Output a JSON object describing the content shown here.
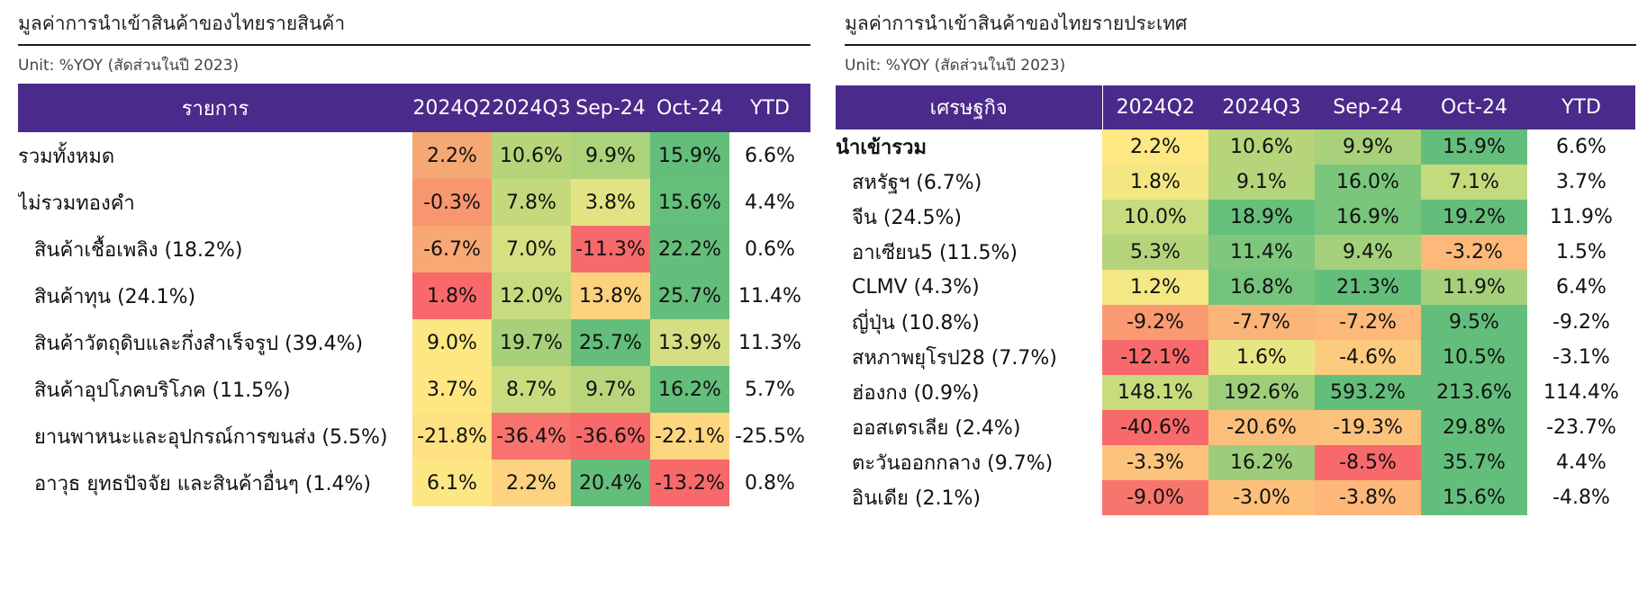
{
  "left": {
    "title": "มูลค่าการนำเข้าสินค้าของไทยรายสินค้า",
    "unit": "Unit: %YOY (สัดส่วนในปี 2023)",
    "headers": [
      "รายการ",
      "2024Q2",
      "2024Q3",
      "Sep-24",
      "Oct-24",
      "YTD"
    ],
    "rows": [
      {
        "label": "รวมทั้งหมด",
        "indent": false,
        "bold": false,
        "values": [
          "2.2%",
          "10.6%",
          "9.9%",
          "15.9%",
          "6.6%"
        ]
      },
      {
        "label": "ไม่รวมทองคำ",
        "indent": false,
        "bold": false,
        "values": [
          "-0.3%",
          "7.8%",
          "3.8%",
          "15.6%",
          "4.4%"
        ]
      },
      {
        "label": "สินค้าเชื้อเพลิง (18.2%)",
        "indent": true,
        "bold": false,
        "values": [
          "-6.7%",
          "7.0%",
          "-11.3%",
          "22.2%",
          "0.6%"
        ]
      },
      {
        "label": "สินค้าทุน (24.1%)",
        "indent": true,
        "bold": false,
        "values": [
          "1.8%",
          "12.0%",
          "13.8%",
          "25.7%",
          "11.4%"
        ]
      },
      {
        "label": "สินค้าวัตถุดิบและกึ่งสำเร็จรูป (39.4%)",
        "indent": true,
        "bold": false,
        "values": [
          "9.0%",
          "19.7%",
          "25.7%",
          "13.9%",
          "11.3%"
        ]
      },
      {
        "label": "สินค้าอุปโภคบริโภค (11.5%)",
        "indent": true,
        "bold": false,
        "values": [
          "3.7%",
          "8.7%",
          "9.7%",
          "16.2%",
          "5.7%"
        ]
      },
      {
        "label": "ยานพาหนะและอุปกรณ์การขนส่ง (5.5%)",
        "indent": true,
        "bold": false,
        "values": [
          "-21.8%",
          "-36.4%",
          "-36.6%",
          "-22.1%",
          "-25.5%"
        ]
      },
      {
        "label": "อาวุธ ยุทธปัจจัย และสินค้าอื่นๆ (1.4%)",
        "indent": true,
        "bold": false,
        "values": [
          "6.1%",
          "2.2%",
          "20.4%",
          "-13.2%",
          "0.8%"
        ]
      }
    ],
    "colors": [
      [
        "#f5a873",
        "#b6d47a",
        "#acd27a",
        "#63be7b"
      ],
      [
        "#f8966f",
        "#c4d97c",
        "#e2e383",
        "#64bf7b"
      ],
      [
        "#f8a874",
        "#d6e081",
        "#f8696b",
        "#63be7b"
      ],
      [
        "#f8696b",
        "#c7dc7e",
        "#fcd27f",
        "#63be7b"
      ],
      [
        "#fce783",
        "#a7d07a",
        "#63be7b",
        "#d3df82"
      ],
      [
        "#fee783",
        "#c8dc7e",
        "#b8d57c",
        "#63be7b"
      ],
      [
        "#fee182",
        "#f8736d",
        "#f8696b",
        "#fdd680"
      ],
      [
        "#fde783",
        "#fdd280",
        "#63be7b",
        "#f8696b"
      ]
    ]
  },
  "right": {
    "title": "มูลค่าการนำเข้าสินค้าของไทยรายประเทศ",
    "unit": "Unit: %YOY (สัดส่วนในปี 2023)",
    "headers": [
      "เศรษฐกิจ",
      "2024Q2",
      "2024Q3",
      "Sep-24",
      "Oct-24",
      "YTD"
    ],
    "rows": [
      {
        "label": "นำเข้ารวม",
        "indent": false,
        "bold": true,
        "values": [
          "2.2%",
          "10.6%",
          "9.9%",
          "15.9%",
          "6.6%"
        ]
      },
      {
        "label": "สหรัฐฯ (6.7%)",
        "indent": true,
        "bold": false,
        "values": [
          "1.8%",
          "9.1%",
          "16.0%",
          "7.1%",
          "3.7%"
        ]
      },
      {
        "label": "จีน (24.5%)",
        "indent": true,
        "bold": false,
        "values": [
          "10.0%",
          "18.9%",
          "16.9%",
          "19.2%",
          "11.9%"
        ]
      },
      {
        "label": "อาเซียน5 (11.5%)",
        "indent": true,
        "bold": false,
        "values": [
          "5.3%",
          "11.4%",
          "9.4%",
          "-3.2%",
          "1.5%"
        ]
      },
      {
        "label": "CLMV (4.3%)",
        "indent": true,
        "bold": false,
        "values": [
          "1.2%",
          "16.8%",
          "21.3%",
          "11.9%",
          "6.4%"
        ]
      },
      {
        "label": "ญี่ปุ่น (10.8%)",
        "indent": true,
        "bold": false,
        "values": [
          "-9.2%",
          "-7.7%",
          "-7.2%",
          "9.5%",
          "-9.2%"
        ]
      },
      {
        "label": "สหภาพยุโรป28 (7.7%)",
        "indent": true,
        "bold": false,
        "values": [
          "-12.1%",
          "1.6%",
          "-4.6%",
          "10.5%",
          "-3.1%"
        ]
      },
      {
        "label": "ฮ่องกง (0.9%)",
        "indent": true,
        "bold": false,
        "values": [
          "148.1%",
          "192.6%",
          "593.2%",
          "213.6%",
          "114.4%"
        ]
      },
      {
        "label": "ออสเตรเลีย (2.4%)",
        "indent": true,
        "bold": false,
        "values": [
          "-40.6%",
          "-20.6%",
          "-19.3%",
          "29.8%",
          "-23.7%"
        ]
      },
      {
        "label": "ตะวันออกกลาง (9.7%)",
        "indent": true,
        "bold": false,
        "values": [
          "-3.3%",
          "16.2%",
          "-8.5%",
          "35.7%",
          "4.4%"
        ]
      },
      {
        "label": "อินเดีย (2.1%)",
        "indent": true,
        "bold": false,
        "values": [
          "-9.0%",
          "-3.0%",
          "-3.8%",
          "15.6%",
          "-4.8%"
        ]
      }
    ],
    "colors": [
      [
        "#fde883",
        "#b6d47a",
        "#a9d07a",
        "#63be7b"
      ],
      [
        "#f4e683",
        "#b4d57c",
        "#7bc67c",
        "#c3da7d"
      ],
      [
        "#c6dc7e",
        "#66bf7b",
        "#78c57c",
        "#63be7b"
      ],
      [
        "#b4d47b",
        "#7ec77c",
        "#a4d07b",
        "#fcb979"
      ],
      [
        "#f3e883",
        "#74c47c",
        "#63be7b",
        "#a6d07b"
      ],
      [
        "#f99a70",
        "#fbb478",
        "#fcb979",
        "#63be7b"
      ],
      [
        "#f8696b",
        "#e6e783",
        "#fdcb7e",
        "#63be7b"
      ],
      [
        "#c8dc7e",
        "#9fce7b",
        "#63be7b",
        "#63be7b"
      ],
      [
        "#f8696b",
        "#fcbf7b",
        "#fcc27c",
        "#63be7b"
      ],
      [
        "#fcc37c",
        "#9dcd7b",
        "#f8696b",
        "#63be7b"
      ],
      [
        "#f8756d",
        "#fcc07b",
        "#fcb779",
        "#63be7b"
      ]
    ]
  }
}
